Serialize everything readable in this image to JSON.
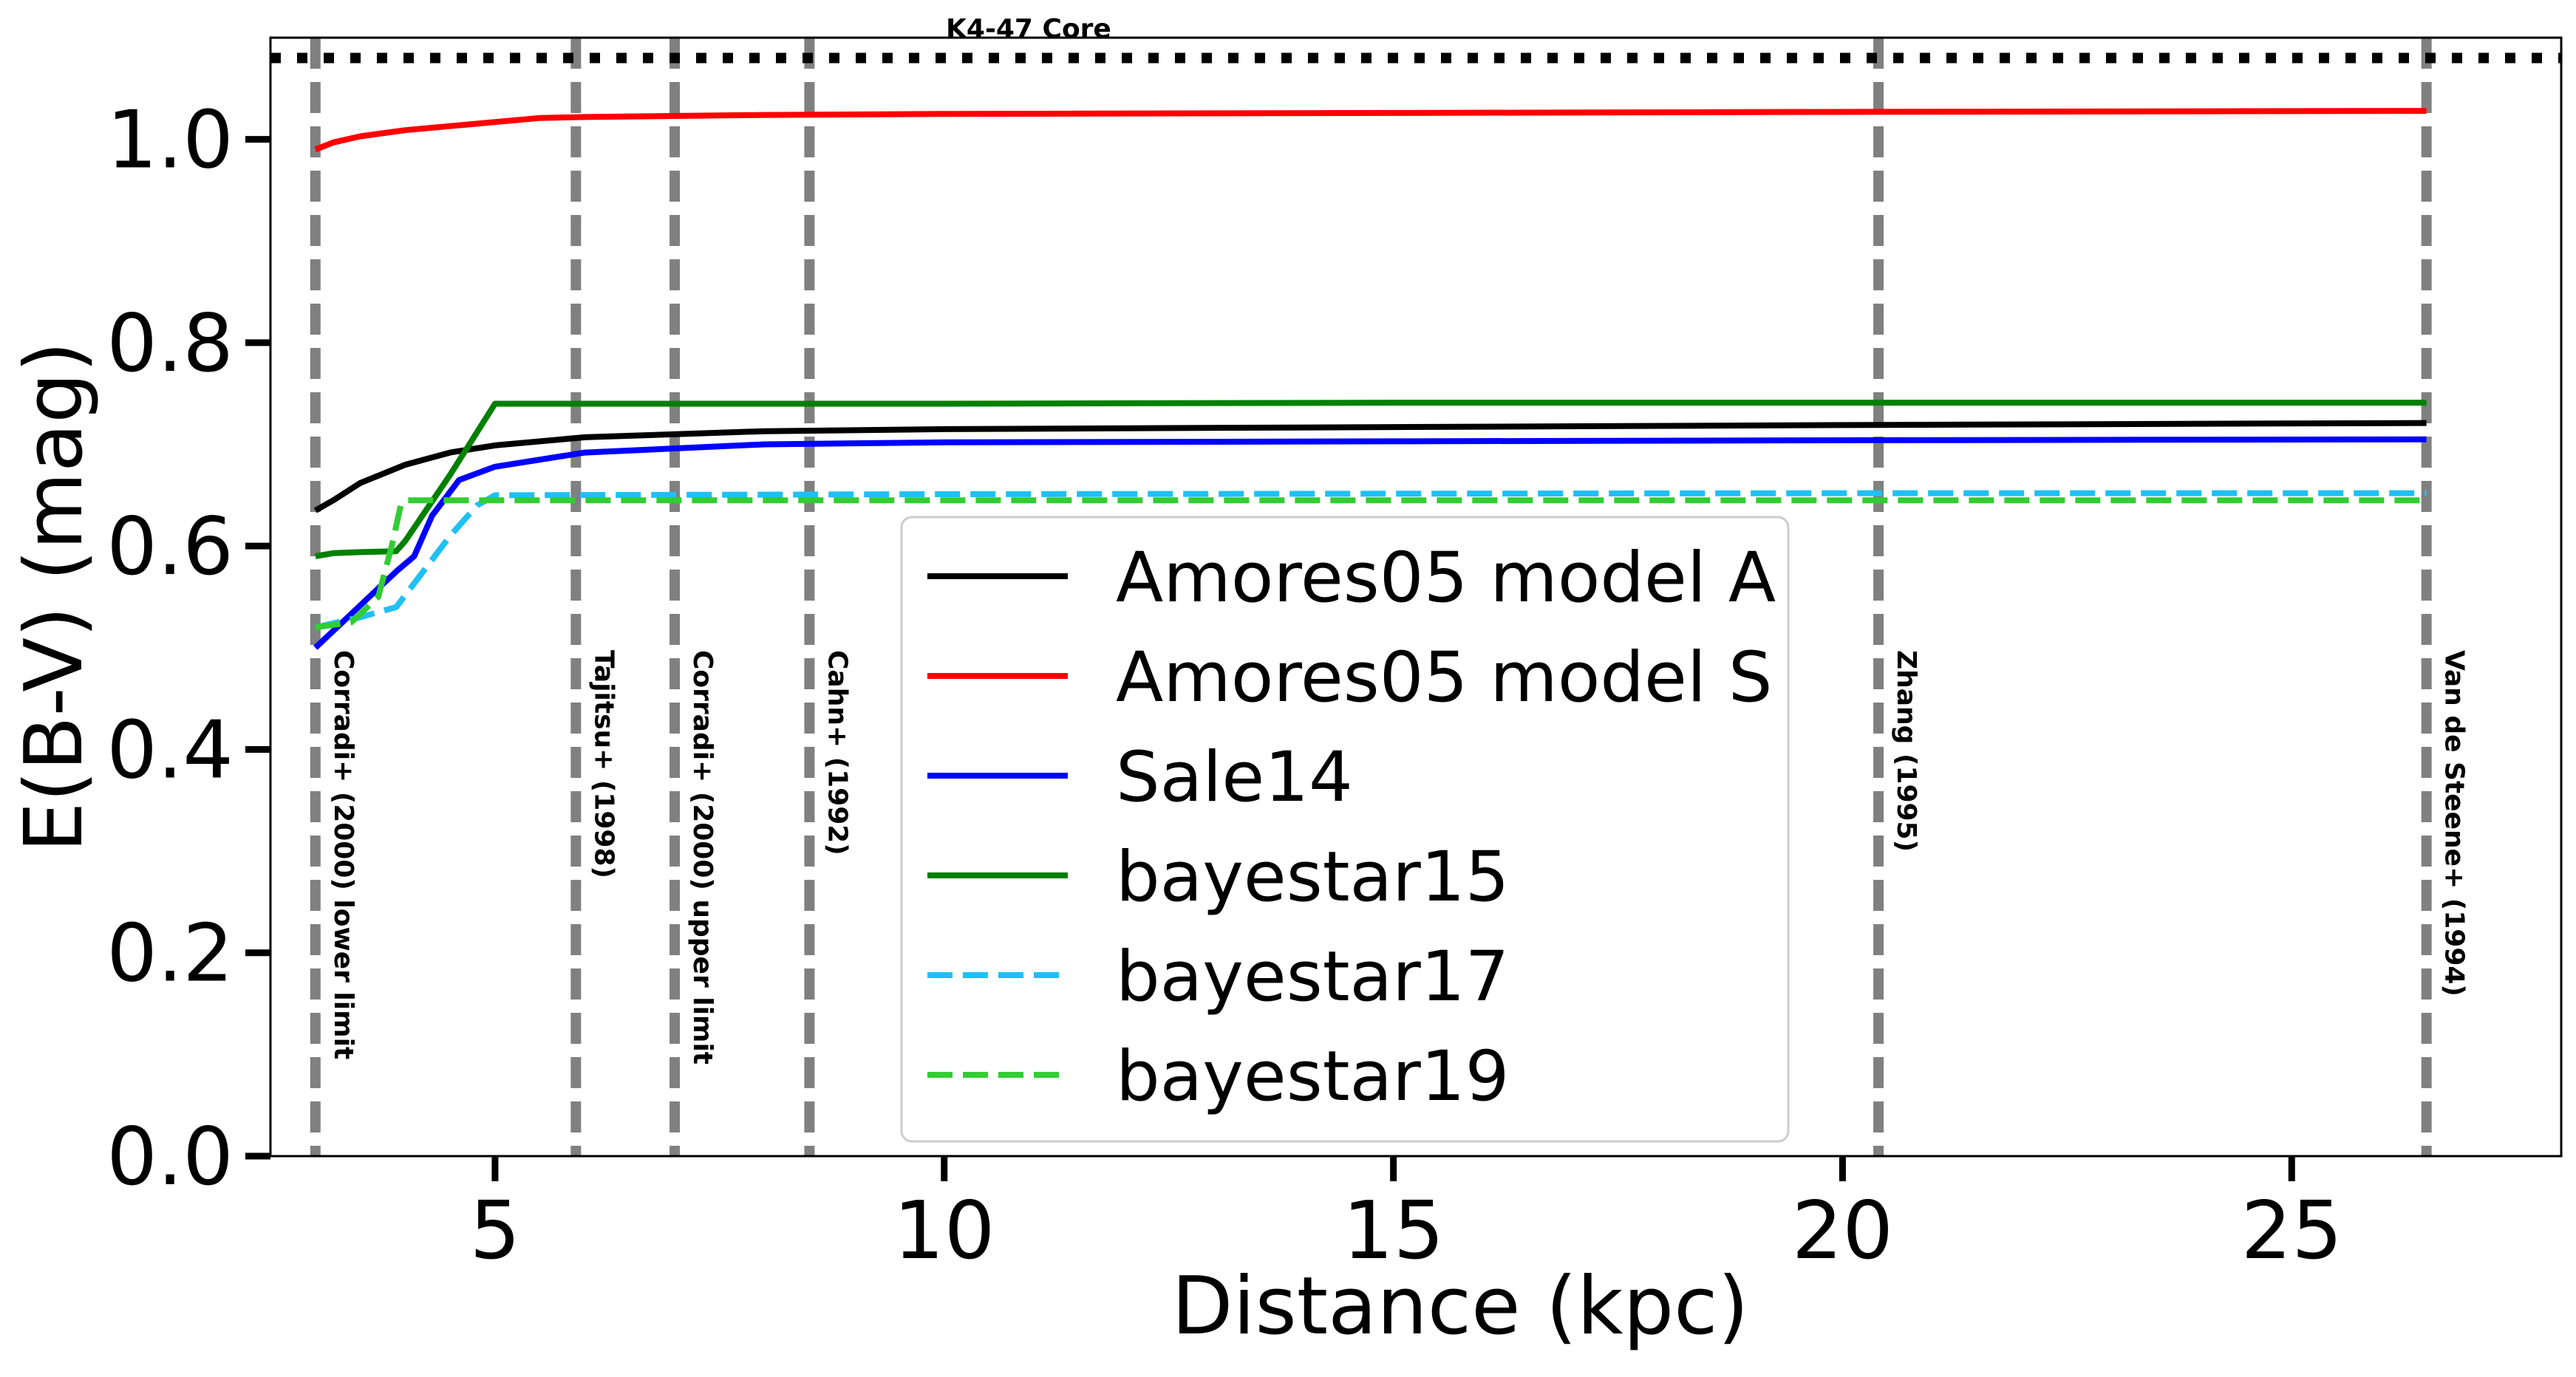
{
  "chart_data": {
    "type": "line",
    "title": "",
    "xlabel": "Distance (kpc)",
    "ylabel": "E(B-V) (mag)",
    "xlim": [
      2.5,
      28.0
    ],
    "ylim": [
      0.0,
      1.1
    ],
    "xticks": [
      5,
      10,
      15,
      20,
      25
    ],
    "yticks": [
      0.0,
      0.2,
      0.4,
      0.6,
      0.8,
      1.0
    ],
    "xtick_labels": [
      "5",
      "10",
      "15",
      "20",
      "25"
    ],
    "ytick_labels": [
      "0.0",
      "0.2",
      "0.4",
      "0.6",
      "0.8",
      "1.0"
    ],
    "grid": false,
    "legend_position": "center",
    "series": [
      {
        "name": "Amores05 model A",
        "color": "#000000",
        "style": "solid",
        "x": [
          3.0,
          3.2,
          3.5,
          4.0,
          4.5,
          5.0,
          6.0,
          8.0,
          10.0,
          15.0,
          20.0,
          26.5
        ],
        "y": [
          0.635,
          0.645,
          0.662,
          0.68,
          0.692,
          0.699,
          0.707,
          0.713,
          0.715,
          0.717,
          0.719,
          0.721
        ]
      },
      {
        "name": "Amores05 model S",
        "color": "#ff0000",
        "style": "solid",
        "x": [
          3.0,
          3.2,
          3.5,
          4.0,
          4.5,
          5.0,
          5.5,
          6.0,
          8.0,
          10.0,
          15.0,
          20.0,
          26.5
        ],
        "y": [
          0.99,
          0.997,
          1.003,
          1.009,
          1.013,
          1.017,
          1.021,
          1.022,
          1.024,
          1.025,
          1.026,
          1.027,
          1.028
        ]
      },
      {
        "name": "Sale14",
        "color": "#0000ff",
        "style": "solid",
        "x": [
          3.0,
          3.3,
          3.6,
          3.9,
          4.1,
          4.3,
          4.6,
          5.0,
          6.0,
          8.0,
          10.0,
          15.0,
          20.0,
          26.5
        ],
        "y": [
          0.5,
          0.525,
          0.55,
          0.575,
          0.59,
          0.63,
          0.665,
          0.678,
          0.692,
          0.7,
          0.702,
          0.703,
          0.704,
          0.705
        ]
      },
      {
        "name": "bayestar15",
        "color": "#008000",
        "style": "solid",
        "x": [
          3.0,
          3.2,
          3.5,
          3.9,
          4.0,
          4.5,
          5.0,
          10.0,
          15.0,
          20.0,
          26.5
        ],
        "y": [
          0.59,
          0.593,
          0.594,
          0.595,
          0.605,
          0.67,
          0.74,
          0.74,
          0.741,
          0.741,
          0.741
        ]
      },
      {
        "name": "bayestar17",
        "color": "#1ec0f5",
        "style": "dashed",
        "x": [
          3.0,
          3.5,
          3.9,
          4.2,
          4.5,
          4.8,
          5.0,
          10.0,
          20.0,
          26.5
        ],
        "y": [
          0.52,
          0.53,
          0.54,
          0.575,
          0.61,
          0.64,
          0.65,
          0.651,
          0.652,
          0.652
        ]
      },
      {
        "name": "bayestar19",
        "color": "#32cd32",
        "style": "dashed",
        "x": [
          3.0,
          3.4,
          3.7,
          3.85,
          3.95,
          4.0,
          5.0,
          10.0,
          20.0,
          26.5
        ],
        "y": [
          0.52,
          0.525,
          0.55,
          0.6,
          0.64,
          0.645,
          0.645,
          0.645,
          0.645,
          0.645
        ]
      }
    ],
    "vertical_lines": [
      {
        "x": 3.0,
        "label": "Corradi+ (2000) lower limit"
      },
      {
        "x": 5.9,
        "label": "Tajitsu+ (1998)"
      },
      {
        "x": 7.0,
        "label": "Corradi+ (2000) upper limit"
      },
      {
        "x": 8.5,
        "label": "Cahn+ (1992)"
      },
      {
        "x": 20.4,
        "label": "Zhang (1995)"
      },
      {
        "x": 26.5,
        "label": "Van de Steene+ (1994)"
      }
    ],
    "horizontal_line": {
      "y": 1.08,
      "label": "K4-47 Core"
    },
    "colors": {
      "vline": "#808080",
      "hline": "#000000"
    }
  }
}
